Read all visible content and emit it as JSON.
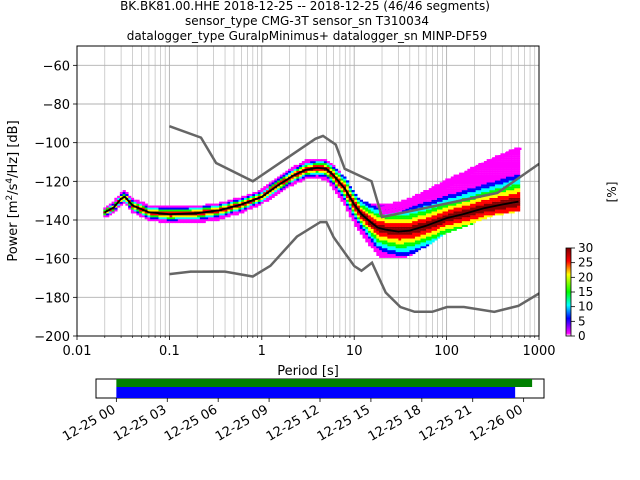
{
  "chart_data": {
    "type": "heatmap",
    "title": {
      "line1": "BK.BK81.00.HHE   2018-12-25 -- 2018-12-25  (46/46 segments)",
      "line2": "sensor_type CMG-3T sensor_sn T310034",
      "line3": "datalogger_type GuralpMinimus+ datalogger_sn MINP-DF59"
    },
    "xlabel": "Period [s]",
    "ylabel_parts": [
      "Power [m",
      "2",
      "/s",
      "4",
      "/Hz] [dB]"
    ],
    "x_scale": "log",
    "xlim": [
      0.01,
      1000
    ],
    "ylim": [
      -200,
      -50
    ],
    "x_ticks": [
      0.01,
      0.1,
      1,
      10,
      100,
      1000
    ],
    "x_tick_labels": [
      "0.01",
      "0.1",
      "1",
      "10",
      "100",
      "1000"
    ],
    "y_ticks": [
      -200,
      -180,
      -160,
      -140,
      -120,
      -100,
      -80,
      -60
    ],
    "y_tick_labels": [
      "−200",
      "−180",
      "−160",
      "−140",
      "−120",
      "−100",
      "−80",
      "−60"
    ],
    "grid": true,
    "noise_model_color": "#666666",
    "high_noise_model": [
      [
        0.1,
        -91.5
      ],
      [
        0.22,
        -97.4
      ],
      [
        0.32,
        -110.5
      ],
      [
        0.8,
        -120
      ],
      [
        3.8,
        -98
      ],
      [
        4.6,
        -96.5
      ],
      [
        6.3,
        -101
      ],
      [
        7.9,
        -113.5
      ],
      [
        15.4,
        -120
      ],
      [
        20,
        -138.5
      ],
      [
        354.8,
        -126
      ],
      [
        1000,
        -111
      ]
    ],
    "low_noise_model": [
      [
        0.1,
        -168
      ],
      [
        0.17,
        -166.7
      ],
      [
        0.4,
        -166.7
      ],
      [
        0.8,
        -169.2
      ],
      [
        1.24,
        -163.7
      ],
      [
        2.4,
        -148.6
      ],
      [
        4.3,
        -141.1
      ],
      [
        5,
        -141.1
      ],
      [
        6,
        -149
      ],
      [
        10,
        -163.8
      ],
      [
        12,
        -166.2
      ],
      [
        15.6,
        -162.1
      ],
      [
        21.9,
        -177.5
      ],
      [
        31.6,
        -185
      ],
      [
        45,
        -187.5
      ],
      [
        70,
        -187.5
      ],
      [
        101,
        -185
      ],
      [
        154,
        -185
      ],
      [
        328,
        -187.5
      ],
      [
        600,
        -184.4
      ],
      [
        1000,
        -178
      ]
    ],
    "mode_curve": [
      [
        0.02,
        -136
      ],
      [
        0.025,
        -133.5
      ],
      [
        0.03,
        -129
      ],
      [
        0.033,
        -128
      ],
      [
        0.04,
        -132.5
      ],
      [
        0.06,
        -136
      ],
      [
        0.1,
        -137
      ],
      [
        0.2,
        -136.5
      ],
      [
        0.35,
        -135
      ],
      [
        0.6,
        -132
      ],
      [
        1,
        -128
      ],
      [
        1.5,
        -122
      ],
      [
        2.2,
        -117
      ],
      [
        3,
        -114
      ],
      [
        4,
        -113
      ],
      [
        5,
        -113.5
      ],
      [
        6,
        -117
      ],
      [
        8,
        -124
      ],
      [
        10,
        -132
      ],
      [
        12,
        -137
      ],
      [
        15,
        -141
      ],
      [
        18,
        -144
      ],
      [
        22,
        -145
      ],
      [
        30,
        -146
      ],
      [
        40,
        -145.5
      ],
      [
        60,
        -143
      ],
      [
        100,
        -139
      ],
      [
        150,
        -137
      ],
      [
        250,
        -134
      ],
      [
        400,
        -132
      ],
      [
        600,
        -130.5
      ]
    ],
    "psd_spread": [
      [
        0.02,
        -2,
        2
      ],
      [
        0.05,
        -3,
        3
      ],
      [
        0.1,
        -4,
        3
      ],
      [
        0.3,
        -4,
        3
      ],
      [
        1,
        -3,
        3
      ],
      [
        3,
        -4,
        4
      ],
      [
        5,
        -5,
        4
      ],
      [
        8,
        -8,
        5
      ],
      [
        12,
        -10,
        6
      ],
      [
        20,
        -14,
        12
      ],
      [
        40,
        -12,
        16
      ],
      [
        100,
        -7,
        19
      ],
      [
        300,
        -4,
        24
      ],
      [
        700,
        -4,
        28
      ]
    ],
    "outlier_series": [
      {
        "offset": 3,
        "color": "#ff00ff"
      },
      {
        "offset": 6,
        "color": "#ff00ff"
      },
      {
        "offset": 10,
        "color": "#ff00ff"
      },
      {
        "offset": 14,
        "color": "#ff00ff"
      }
    ],
    "colorbar": {
      "label": "[%]",
      "range": [
        0,
        30
      ],
      "ticks": [
        0,
        5,
        10,
        15,
        20,
        25,
        30
      ],
      "colormap": "pqlx",
      "colors": [
        "#ffffff",
        "#ff00ff",
        "#0000ff",
        "#00ffff",
        "#00ff00",
        "#ffff00",
        "#ff0000",
        "#800000"
      ]
    },
    "coverage": {
      "x_tick_labels": [
        "12-25 00",
        "12-25 03",
        "12-25 06",
        "12-25 09",
        "12-25 12",
        "12-25 15",
        "12-25 18",
        "12-25 21",
        "12-26 00"
      ],
      "x_range_hours": [
        -1.2,
        25.2
      ],
      "bars": [
        {
          "start_hour": 0,
          "end_hour": 24.5,
          "color": "#008000"
        },
        {
          "start_hour": 0,
          "end_hour": 23.5,
          "color": "#0000ff"
        }
      ]
    }
  }
}
